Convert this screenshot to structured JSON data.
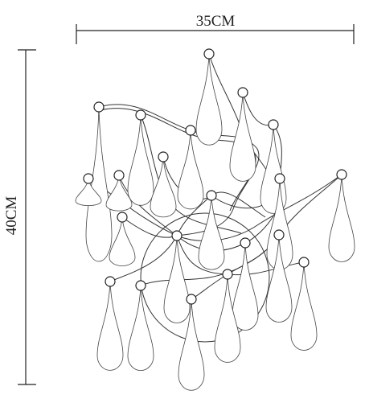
{
  "dimensions": {
    "width": "35CM",
    "height": "40CM"
  }
}
